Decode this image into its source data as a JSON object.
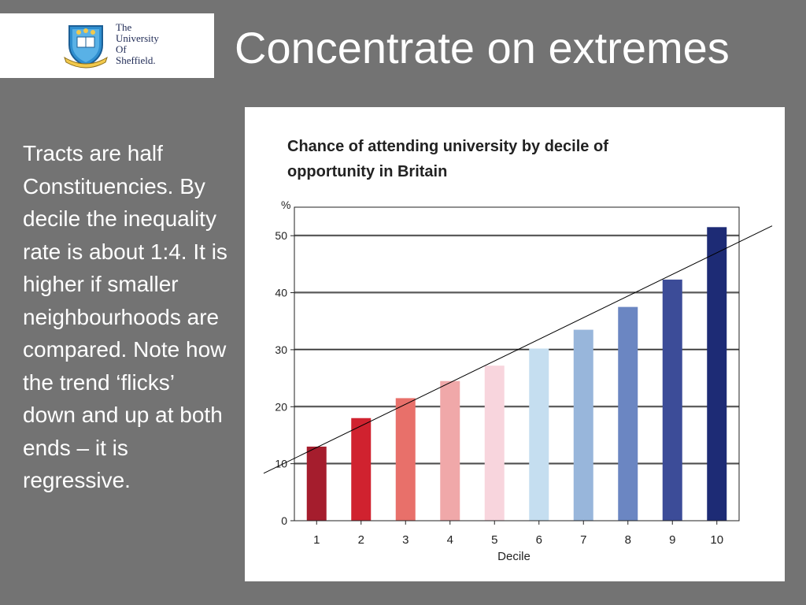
{
  "logo": {
    "lines": [
      "The",
      "University",
      "Of",
      "Sheffield."
    ]
  },
  "slide": {
    "title": "Concentrate on extremes",
    "body": "Tracts are half Constituencies. By decile the inequality rate is about 1:4. It is higher if smaller neighbourhoods are compared. Note how the trend ‘flicks’ down and up at both ends – it is regressive."
  },
  "chart_data": {
    "type": "bar",
    "title": "Chance of attending university by decile of opportunity in Britain",
    "xlabel": "Decile",
    "ylabel": "%",
    "categories": [
      "1",
      "2",
      "3",
      "4",
      "5",
      "6",
      "7",
      "8",
      "9",
      "10"
    ],
    "values": [
      13,
      18,
      21.5,
      24.5,
      27.2,
      30.2,
      33.5,
      37.5,
      42.3,
      51.5
    ],
    "colors": [
      "#a51d2d",
      "#d0222f",
      "#e8706a",
      "#f0a8a9",
      "#f8d5dd",
      "#c5def0",
      "#98b6db",
      "#6b86c2",
      "#3c4c98",
      "#1d2b75"
    ],
    "ylim": [
      0,
      55
    ],
    "yticks": [
      0,
      10,
      20,
      30,
      40,
      50
    ],
    "grid": true,
    "trendline": true
  }
}
